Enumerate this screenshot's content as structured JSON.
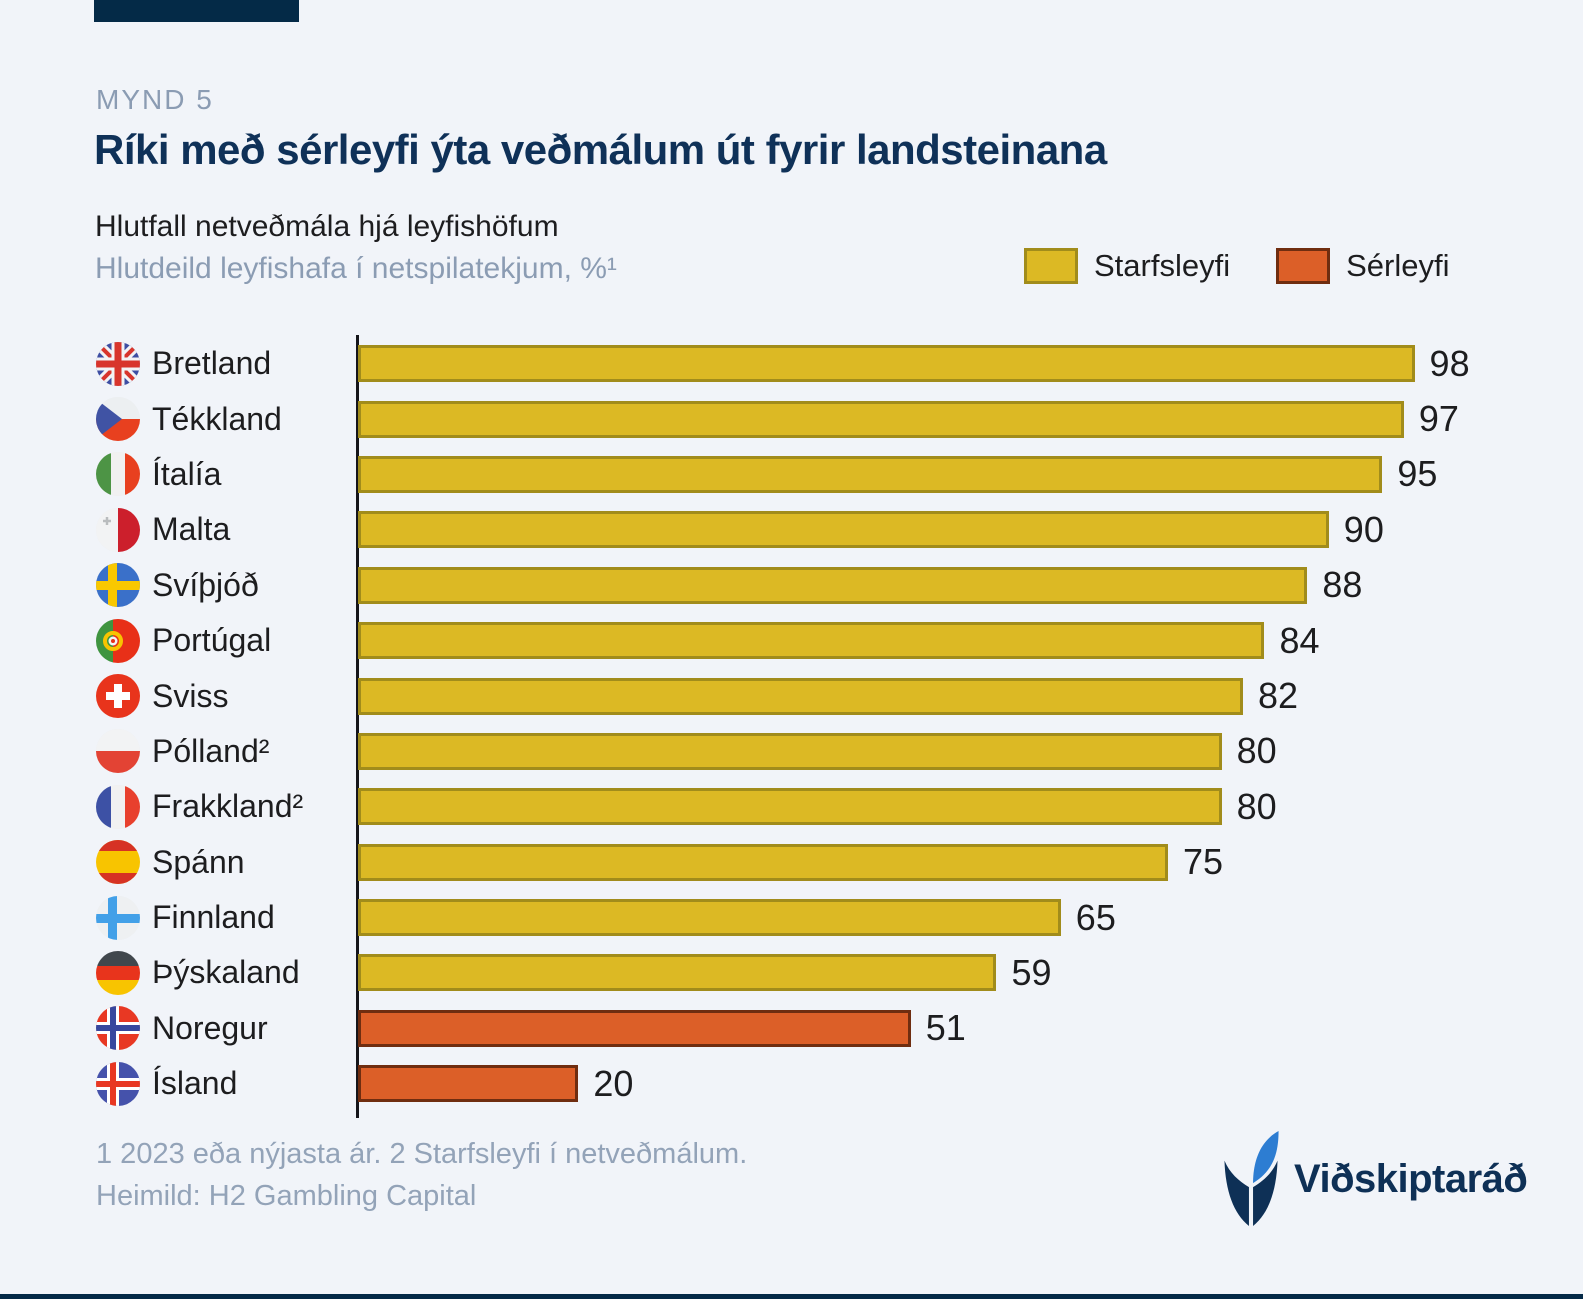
{
  "header": {
    "eyebrow": "MYND 5",
    "title": "Ríki með sérleyfi ýta veðmálum út fyrir landsteinana",
    "subtitle1": "Hlutfall netveðmála hjá leyfishöfum",
    "subtitle2": "Hlutdeild leyfishafa í netspilatekjum, %¹"
  },
  "legend": [
    {
      "label": "Starfsleyfi",
      "color": "#dcb924",
      "border": "#a18c1b"
    },
    {
      "label": "Sérleyfi",
      "color": "#dc5f28",
      "border": "#6f2d10"
    }
  ],
  "chart_data": {
    "type": "bar",
    "orientation": "horizontal",
    "title": "Ríki með sérleyfi ýta veðmálum út fyrir landsteinana",
    "xlabel": "Hlutdeild leyfishafa í netspilatekjum, %",
    "xlim": [
      0,
      100
    ],
    "unit": "%",
    "legend_position": "top-right",
    "grid": false,
    "rows": [
      {
        "country": "Bretland",
        "value": 98,
        "series": "Starfsleyfi"
      },
      {
        "country": "Tékkland",
        "value": 97,
        "series": "Starfsleyfi"
      },
      {
        "country": "Ítalía",
        "value": 95,
        "series": "Starfsleyfi"
      },
      {
        "country": "Malta",
        "value": 90,
        "series": "Starfsleyfi"
      },
      {
        "country": "Svíþjóð",
        "value": 88,
        "series": "Starfsleyfi"
      },
      {
        "country": "Portúgal",
        "value": 84,
        "series": "Starfsleyfi"
      },
      {
        "country": "Sviss",
        "value": 82,
        "series": "Starfsleyfi"
      },
      {
        "country": "Pólland²",
        "value": 80,
        "series": "Starfsleyfi"
      },
      {
        "country": "Frakkland²",
        "value": 80,
        "series": "Starfsleyfi"
      },
      {
        "country": "Spánn",
        "value": 75,
        "series": "Starfsleyfi"
      },
      {
        "country": "Finnland",
        "value": 65,
        "series": "Starfsleyfi"
      },
      {
        "country": "Þýskaland",
        "value": 59,
        "series": "Starfsleyfi"
      },
      {
        "country": "Noregur",
        "value": 51,
        "series": "Sérleyfi"
      },
      {
        "country": "Ísland",
        "value": 20,
        "series": "Sérleyfi"
      }
    ]
  },
  "footnotes": {
    "line1": "1 2023 eða nýjasta ár. 2 Starfsleyfi í netveðmálum.",
    "line2": "Heimild: H2 Gambling Capital"
  },
  "logo": {
    "text": "Viðskiptaráð"
  },
  "colors": {
    "background": "#f1f4f9",
    "navy": "#042a47",
    "title_navy": "#0f3158",
    "muted_blue_gray": "#8b9cb3",
    "bar_yellow": "#dcb924",
    "bar_yellow_border": "#a18c1b",
    "bar_orange": "#dc5f28",
    "bar_orange_border": "#6f2d10",
    "logo_blue": "#2d7dd2"
  }
}
